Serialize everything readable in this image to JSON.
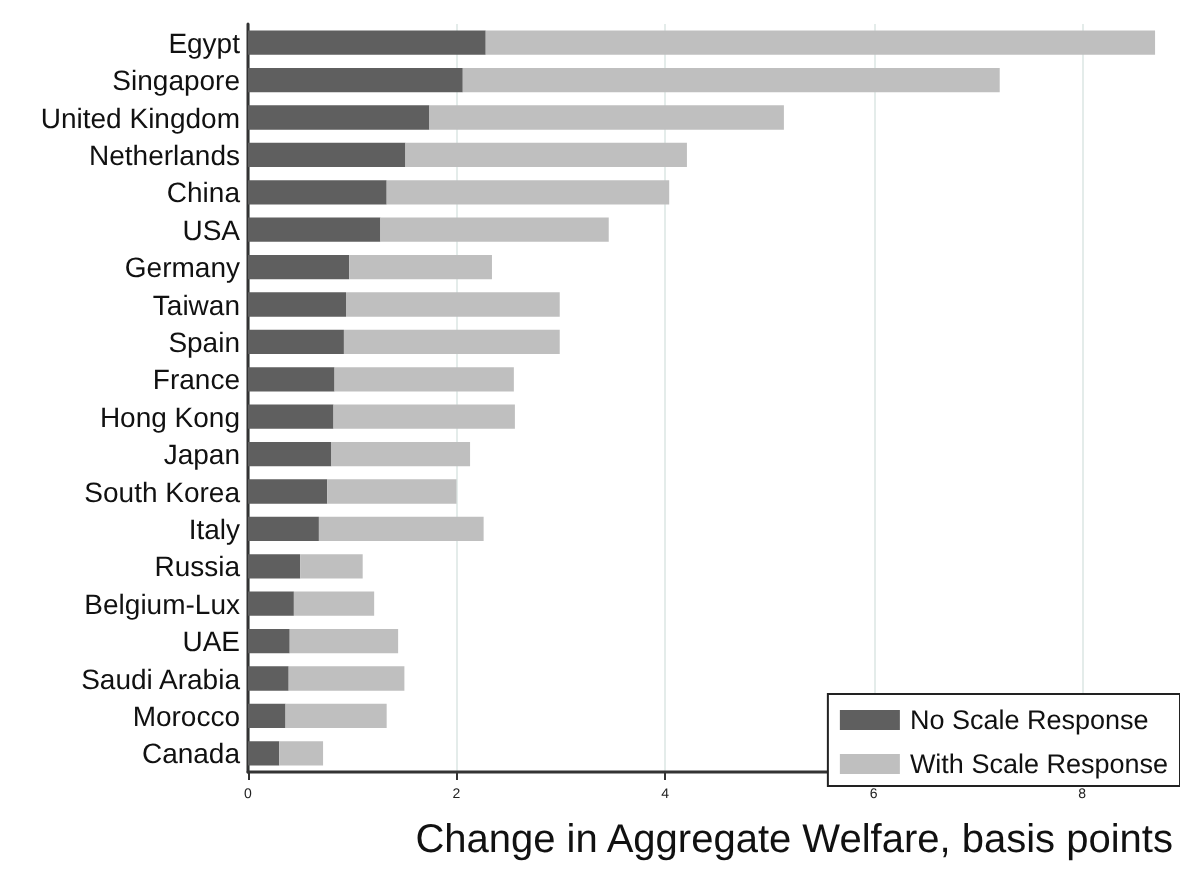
{
  "chart_data": {
    "type": "bar",
    "orientation": "horizontal",
    "stacked": true,
    "xlabel": "Change in Aggregate Welfare, basis points",
    "categories": [
      "Egypt",
      "Singapore",
      "United Kingdom",
      "Netherlands",
      "China",
      "USA",
      "Germany",
      "Taiwan",
      "Spain",
      "France",
      "Hong Kong",
      "Japan",
      "South Korea",
      "Italy",
      "Russia",
      "Belgium-Lux",
      "UAE",
      "Saudi Arabia",
      "Morocco",
      "Canada"
    ],
    "series": [
      {
        "name": "No Scale Response",
        "color": "#5f5f5f",
        "values": [
          2.28,
          2.06,
          1.74,
          1.51,
          1.33,
          1.27,
          0.97,
          0.94,
          0.92,
          0.83,
          0.82,
          0.8,
          0.76,
          0.68,
          0.5,
          0.44,
          0.4,
          0.39,
          0.36,
          0.3
        ]
      },
      {
        "name": "With Scale Response",
        "color": "#bfbfbf",
        "values": [
          6.42,
          5.15,
          3.4,
          2.7,
          2.71,
          2.19,
          1.37,
          2.05,
          2.07,
          1.72,
          1.74,
          1.33,
          1.24,
          1.58,
          0.6,
          0.77,
          1.04,
          1.11,
          0.97,
          0.42
        ]
      }
    ],
    "xlim": [
      0,
      8.75
    ],
    "xticks": [
      0,
      2,
      4,
      6,
      8
    ],
    "grid": "x",
    "legend": "bottom right"
  }
}
